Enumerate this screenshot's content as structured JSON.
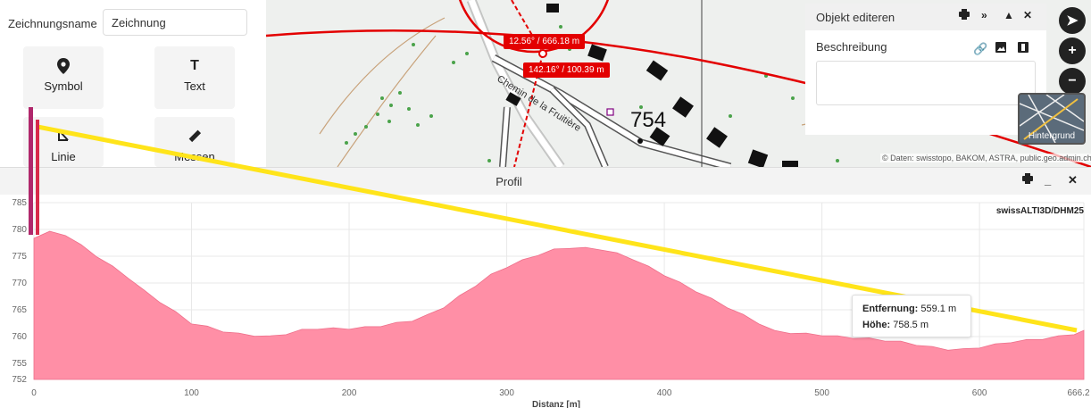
{
  "drawing": {
    "name_label": "Zeichnungsname",
    "name_value": "Zeichnung",
    "tools": [
      {
        "label": "Symbol",
        "icon": "map-pin-icon"
      },
      {
        "label": "Text",
        "icon": "text-icon"
      },
      {
        "label": "Linie",
        "icon": "line-icon"
      },
      {
        "label": "Messen",
        "icon": "ruler-icon"
      }
    ]
  },
  "edit_panel": {
    "title": "Objekt editeren",
    "description_label": "Beschreibung"
  },
  "map": {
    "street_label": "Chemin de la Fruitière",
    "height_label": "754",
    "tooltip1": "12.56° / 666.18 m",
    "tooltip2": "142.16° / 100.39 m",
    "background_label": "Hintergrund",
    "attribution": "© Daten: swisstopo, BAKOM, ASTRA, public.geo.admin.ch"
  },
  "profile": {
    "title": "Profil",
    "source": "swissALTI3D/DHM25",
    "legend": {
      "distance_label": "Entfernung:",
      "distance_value": "559.1 m",
      "height_label": "Höhe:",
      "height_value": "758.5 m"
    }
  },
  "chart_data": {
    "type": "area",
    "xlabel": "Distanz [m]",
    "ylabel": "",
    "xlim": [
      0,
      666.2
    ],
    "ylim": [
      752,
      785
    ],
    "x_ticks": [
      "0",
      "100",
      "200",
      "300",
      "400",
      "500",
      "600",
      "666.2"
    ],
    "y_ticks": [
      "752",
      "755",
      "760",
      "765",
      "770",
      "775",
      "780",
      "785"
    ],
    "fill_color": "#ff8fa6",
    "series": [
      {
        "x": [
          0,
          10,
          20,
          30,
          40,
          50,
          60,
          70,
          80,
          90,
          100,
          110,
          120,
          130,
          140,
          150,
          160,
          170,
          180,
          190,
          200,
          210,
          220,
          230,
          240,
          250,
          260,
          270,
          280,
          290,
          300,
          310,
          320,
          330,
          340,
          350,
          360,
          370,
          380,
          390,
          400,
          410,
          420,
          430,
          440,
          450,
          460,
          470,
          480,
          490,
          500,
          510,
          520,
          530,
          540,
          550,
          560,
          570,
          580,
          590,
          600,
          610,
          620,
          630,
          640,
          650,
          660,
          666.2
        ],
        "y": [
          778.5,
          779.5,
          779.0,
          777.0,
          775.0,
          773.0,
          771.0,
          768.5,
          766.5,
          764.5,
          762.5,
          761.8,
          761.0,
          760.5,
          760.2,
          760.0,
          760.5,
          761.2,
          761.5,
          761.5,
          761.5,
          761.7,
          762.0,
          762.5,
          763.0,
          764.0,
          765.5,
          767.5,
          769.5,
          771.5,
          773.0,
          774.2,
          775.3,
          776.2,
          776.6,
          776.5,
          776.3,
          775.5,
          774.5,
          773.0,
          771.5,
          770.0,
          768.5,
          767.0,
          765.5,
          764.0,
          762.5,
          761.0,
          760.7,
          760.5,
          760.3,
          760.0,
          759.8,
          759.6,
          759.3,
          759.0,
          758.5,
          758.0,
          757.6,
          757.6,
          758.0,
          758.5,
          759.0,
          759.3,
          759.6,
          760.0,
          760.5,
          761.0
        ]
      }
    ]
  }
}
